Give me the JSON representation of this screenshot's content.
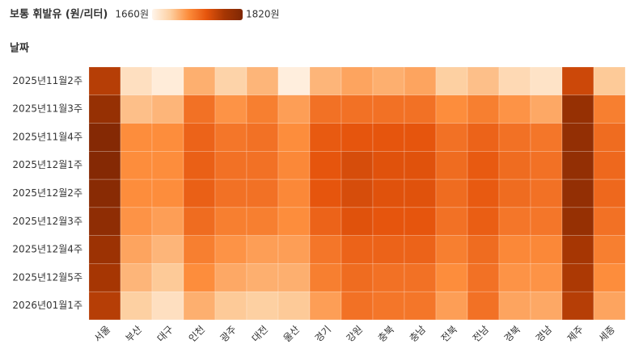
{
  "chart_data": {
    "type": "heatmap",
    "legend_title": "보통 휘발유 (원/리터)",
    "y_label": "날짜",
    "clim": [
      1660,
      1820
    ],
    "cticks": [
      {
        "value": 1660,
        "label": "1660원"
      },
      {
        "value": 1820,
        "label": "1820원"
      }
    ],
    "colorscale": [
      "#fff5eb",
      "#fdd0a2",
      "#fd8d3c",
      "#e6550d",
      "#a63603",
      "#7f2704"
    ],
    "x_categories": [
      "서울",
      "부산",
      "대구",
      "인천",
      "광주",
      "대전",
      "울산",
      "경기",
      "강원",
      "충북",
      "충남",
      "전북",
      "전남",
      "경북",
      "경남",
      "제주",
      "세종"
    ],
    "y_categories": [
      "2025년11월2주",
      "2025년11월3주",
      "2025년11월4주",
      "2025년12월1주",
      "2025년12월2주",
      "2025년12월3주",
      "2025년12월4주",
      "2025년12월5주",
      "2026년01월1주"
    ],
    "values": [
      [
        1780,
        1679,
        1668,
        1708,
        1689,
        1705,
        1666,
        1705,
        1713,
        1708,
        1713,
        1692,
        1700,
        1684,
        1676,
        1769,
        1695
      ],
      [
        1801,
        1700,
        1705,
        1740,
        1721,
        1732,
        1716,
        1740,
        1740,
        1740,
        1740,
        1724,
        1732,
        1721,
        1711,
        1801,
        1732
      ],
      [
        1815,
        1724,
        1724,
        1748,
        1737,
        1740,
        1724,
        1753,
        1756,
        1756,
        1756,
        1740,
        1748,
        1740,
        1737,
        1804,
        1743
      ],
      [
        1815,
        1724,
        1724,
        1750,
        1740,
        1740,
        1727,
        1756,
        1764,
        1759,
        1759,
        1743,
        1753,
        1743,
        1740,
        1804,
        1745
      ],
      [
        1812,
        1724,
        1724,
        1750,
        1740,
        1740,
        1727,
        1756,
        1764,
        1759,
        1759,
        1743,
        1753,
        1743,
        1740,
        1804,
        1745
      ],
      [
        1807,
        1721,
        1716,
        1743,
        1732,
        1732,
        1724,
        1748,
        1759,
        1756,
        1756,
        1740,
        1751,
        1737,
        1737,
        1801,
        1740
      ],
      [
        1796,
        1713,
        1705,
        1732,
        1721,
        1716,
        1716,
        1737,
        1748,
        1748,
        1748,
        1732,
        1743,
        1727,
        1727,
        1788,
        1732
      ],
      [
        1788,
        1705,
        1695,
        1724,
        1711,
        1708,
        1708,
        1732,
        1743,
        1740,
        1740,
        1724,
        1740,
        1721,
        1721,
        1785,
        1724
      ],
      [
        1780,
        1692,
        1679,
        1708,
        1695,
        1692,
        1695,
        1716,
        1740,
        1737,
        1737,
        1716,
        1740,
        1713,
        1711,
        1780,
        1713
      ]
    ]
  }
}
